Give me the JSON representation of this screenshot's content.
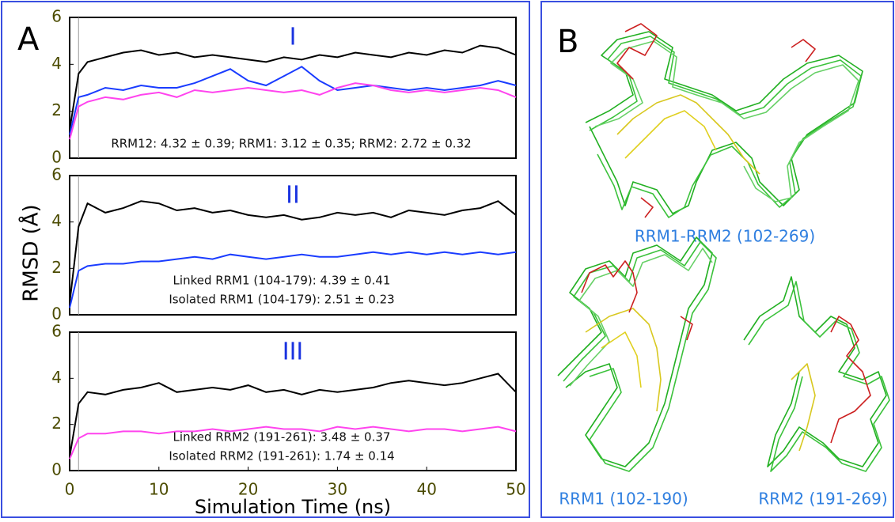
{
  "panel_a": {
    "label": "A"
  },
  "panel_b": {
    "label": "B",
    "captions": [
      "RRM1-RRM2 (102-269)",
      "RRM1 (102-190)",
      "RRM2 (191-269)"
    ]
  },
  "chart_data": [
    {
      "type": "line",
      "title": "I",
      "annotations": [
        "RRM12: 4.32 ± 0.39;  RRM1: 3.12 ± 0.35;  RRM2: 2.72 ± 0.32"
      ],
      "x": [
        0,
        1,
        2,
        4,
        6,
        8,
        10,
        12,
        14,
        16,
        18,
        20,
        22,
        24,
        26,
        28,
        30,
        32,
        34,
        36,
        38,
        40,
        42,
        44,
        46,
        48,
        50
      ],
      "series": [
        {
          "color": "#000000",
          "values": [
            1.2,
            3.6,
            4.1,
            4.3,
            4.5,
            4.6,
            4.4,
            4.5,
            4.3,
            4.4,
            4.3,
            4.2,
            4.1,
            4.3,
            4.2,
            4.4,
            4.3,
            4.5,
            4.4,
            4.3,
            4.5,
            4.4,
            4.6,
            4.5,
            4.8,
            4.7,
            4.4
          ]
        },
        {
          "color": "#1a3cff",
          "values": [
            1.0,
            2.6,
            2.7,
            3.0,
            2.9,
            3.1,
            3.0,
            3.0,
            3.2,
            3.5,
            3.8,
            3.3,
            3.1,
            3.5,
            3.9,
            3.3,
            2.9,
            3.0,
            3.1,
            3.0,
            2.9,
            3.0,
            2.9,
            3.0,
            3.1,
            3.3,
            3.1
          ]
        },
        {
          "color": "#ff44ee",
          "values": [
            0.8,
            2.2,
            2.4,
            2.6,
            2.5,
            2.7,
            2.8,
            2.6,
            2.9,
            2.8,
            2.9,
            3.0,
            2.9,
            2.8,
            2.9,
            2.7,
            3.0,
            3.2,
            3.1,
            2.9,
            2.8,
            2.9,
            2.8,
            2.9,
            3.0,
            2.9,
            2.6
          ]
        }
      ],
      "vline": 1,
      "xlim": [
        0,
        50
      ],
      "ylim": [
        0,
        6
      ],
      "yticks": [
        0,
        2,
        4,
        6
      ]
    },
    {
      "type": "line",
      "title": "II",
      "ylabel": "RMSD (Å)",
      "annotations": [
        "Linked RRM1 (104-179): 4.39 ± 0.41",
        "Isolated RRM1 (104-179): 2.51 ± 0.23"
      ],
      "x": [
        0,
        1,
        2,
        4,
        6,
        8,
        10,
        12,
        14,
        16,
        18,
        20,
        22,
        24,
        26,
        28,
        30,
        32,
        34,
        36,
        38,
        40,
        42,
        44,
        46,
        48,
        50
      ],
      "series": [
        {
          "color": "#000000",
          "values": [
            0.5,
            3.8,
            4.8,
            4.4,
            4.6,
            4.9,
            4.8,
            4.5,
            4.6,
            4.4,
            4.5,
            4.3,
            4.2,
            4.3,
            4.1,
            4.2,
            4.4,
            4.3,
            4.4,
            4.2,
            4.5,
            4.4,
            4.3,
            4.5,
            4.6,
            4.9,
            4.3
          ]
        },
        {
          "color": "#1a3cff",
          "values": [
            0.3,
            1.9,
            2.1,
            2.2,
            2.2,
            2.3,
            2.3,
            2.4,
            2.5,
            2.4,
            2.6,
            2.5,
            2.4,
            2.5,
            2.6,
            2.5,
            2.5,
            2.6,
            2.7,
            2.6,
            2.7,
            2.6,
            2.7,
            2.6,
            2.7,
            2.6,
            2.7
          ]
        }
      ],
      "vline": 1,
      "xlim": [
        0,
        50
      ],
      "ylim": [
        0,
        6
      ],
      "yticks": [
        0,
        2,
        4,
        6
      ]
    },
    {
      "type": "line",
      "title": "III",
      "xlabel": "Simulation Time (ns)",
      "annotations": [
        "Linked RRM2 (191-261): 3.48 ± 0.37",
        "Isolated RRM2 (191-261): 1.74 ± 0.14"
      ],
      "x": [
        0,
        1,
        2,
        4,
        6,
        8,
        10,
        12,
        14,
        16,
        18,
        20,
        22,
        24,
        26,
        28,
        30,
        32,
        34,
        36,
        38,
        40,
        42,
        44,
        46,
        48,
        50
      ],
      "series": [
        {
          "color": "#000000",
          "values": [
            0.6,
            2.9,
            3.4,
            3.3,
            3.5,
            3.6,
            3.8,
            3.4,
            3.5,
            3.6,
            3.5,
            3.7,
            3.4,
            3.5,
            3.3,
            3.5,
            3.4,
            3.5,
            3.6,
            3.8,
            3.9,
            3.8,
            3.7,
            3.8,
            4.0,
            4.2,
            3.4
          ]
        },
        {
          "color": "#ff44ee",
          "values": [
            0.5,
            1.4,
            1.6,
            1.6,
            1.7,
            1.7,
            1.6,
            1.7,
            1.7,
            1.8,
            1.7,
            1.8,
            1.9,
            1.8,
            1.8,
            1.7,
            1.9,
            1.8,
            1.9,
            1.8,
            1.7,
            1.8,
            1.8,
            1.7,
            1.8,
            1.9,
            1.7
          ]
        }
      ],
      "vline": 1,
      "xlim": [
        0,
        50
      ],
      "ylim": [
        0,
        6
      ],
      "yticks": [
        0,
        2,
        4,
        6
      ],
      "xticks": [
        0,
        10,
        20,
        30,
        40,
        50
      ]
    }
  ]
}
